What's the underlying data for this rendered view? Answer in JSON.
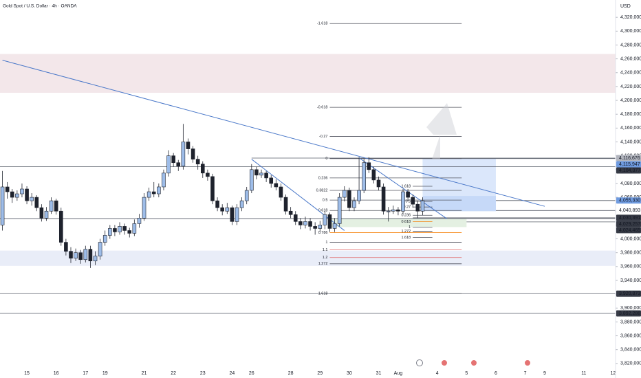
{
  "chart_data": {
    "type": "candlestick",
    "title": "Gold Spot / U.S. Dollar · 4h · OANDA",
    "currency": "USD",
    "categories": [
      null,
      null,
      null,
      null,
      null,
      "15",
      null,
      null,
      null,
      null,
      null,
      "16",
      null,
      null,
      null,
      null,
      null,
      "17",
      null,
      null,
      null,
      "19",
      null,
      null,
      null,
      null,
      null,
      null,
      null,
      "21",
      null,
      null,
      null,
      null,
      null,
      "22",
      null,
      null,
      null,
      null,
      null,
      "23",
      null,
      null,
      null,
      null,
      null,
      "24",
      null,
      null,
      null,
      "26",
      null,
      null,
      null,
      null,
      null,
      null,
      null,
      "28",
      null,
      null,
      null,
      null,
      null,
      "29",
      null,
      null,
      null,
      null,
      null,
      "30",
      null,
      null,
      null,
      null,
      null,
      "31",
      null,
      null,
      null,
      "Aug",
      null,
      null,
      null,
      null,
      null,
      null,
      null,
      "4",
      null,
      null,
      null,
      null,
      null,
      "5",
      null,
      null,
      null,
      null,
      null,
      "6",
      null,
      null,
      null,
      null,
      null,
      "7",
      null,
      null,
      null,
      "9",
      null,
      null,
      null,
      null,
      null,
      null,
      null,
      "11",
      null,
      null,
      null,
      null,
      null,
      "12"
    ],
    "open": [
      4020000,
      4075000,
      4068000,
      4060000,
      4065000,
      4072000,
      4055000,
      4060000,
      4045000,
      4030000,
      4040000,
      4055000,
      4040000,
      3995000,
      3982000,
      3972000,
      3980000,
      3970000,
      3985000,
      3968000,
      3975000,
      3995000,
      4005000,
      4015000,
      4010000,
      4018000,
      4012000,
      4008000,
      4022000,
      4030000,
      4060000,
      4068000,
      4065000,
      4075000,
      4095000,
      4120000,
      4110000,
      4105000,
      4140000,
      4130000,
      4115000,
      4108000,
      4095000,
      4090000,
      4055000,
      4045000,
      4040000,
      4045000,
      4025000,
      4045000,
      4055000,
      4070000,
      4100000,
      4092000,
      4095000,
      4088000,
      4080000,
      4075000,
      4060000,
      4040000,
      4035000,
      4025000,
      4020000,
      4025000,
      4018000,
      4015000,
      4020000,
      4035000,
      4015000,
      4022000,
      4060000,
      4070000,
      4045000,
      4055000,
      4070000,
      4110000,
      4100000,
      4085000,
      4075000,
      4040000,
      4040000,
      4042000,
      4040000,
      4068000,
      4060000,
      4050000,
      4040000,
      null,
      null,
      null,
      null,
      null,
      null,
      null,
      null,
      null,
      null,
      null,
      null,
      null,
      null,
      null,
      null,
      null,
      null,
      null,
      null,
      null,
      null,
      null,
      null,
      null,
      null,
      null,
      null,
      null,
      null,
      null,
      null,
      null,
      null,
      null,
      null,
      null,
      null,
      null
    ],
    "high": [
      4098000,
      4082000,
      4072000,
      4070000,
      4080000,
      4076000,
      4066000,
      4063000,
      4050000,
      4046000,
      4060000,
      4058000,
      4045000,
      4000000,
      3988000,
      3986000,
      3984000,
      3990000,
      3990000,
      3982000,
      4000000,
      4012000,
      4020000,
      4020000,
      4024000,
      4022000,
      4016000,
      4028000,
      4036000,
      4066000,
      4074000,
      4082000,
      4080000,
      4100000,
      4128000,
      4124000,
      4114000,
      4166000,
      4145000,
      4134000,
      4120000,
      4112000,
      4100000,
      4094000,
      4060000,
      4050000,
      4052000,
      4048000,
      4050000,
      4060000,
      4075000,
      4108000,
      4104000,
      4100000,
      4098000,
      4092000,
      4086000,
      4080000,
      4064000,
      4046000,
      4040000,
      4030000,
      4032000,
      4030000,
      4024000,
      4026000,
      4040000,
      4038000,
      4030000,
      4066000,
      4076000,
      4074000,
      4060000,
      4118000,
      4116000,
      4118000,
      4104000,
      4090000,
      4080000,
      4046000,
      4048000,
      4046000,
      4072000,
      4072000,
      4064000,
      4055000,
      4060000,
      null,
      null,
      null,
      null,
      null,
      null,
      null,
      null,
      null,
      null,
      null,
      null,
      null,
      null,
      null,
      null,
      null,
      null,
      null,
      null,
      null,
      null,
      null,
      null,
      null,
      null,
      null,
      null,
      null,
      null,
      null,
      null,
      null,
      null,
      null,
      null,
      null,
      null,
      null
    ],
    "low": [
      4012000,
      4058000,
      4052000,
      4055000,
      4060000,
      4050000,
      4048000,
      4040000,
      4025000,
      4026000,
      4036000,
      4035000,
      3990000,
      3976000,
      3965000,
      3968000,
      3964000,
      3966000,
      3958000,
      3962000,
      3970000,
      3990000,
      4000000,
      4004000,
      4006000,
      4006000,
      4002000,
      4004000,
      4016000,
      4026000,
      4055000,
      4060000,
      4060000,
      4070000,
      4090000,
      4104000,
      4098000,
      4100000,
      4122000,
      4110000,
      4100000,
      4088000,
      4084000,
      4050000,
      4040000,
      4034000,
      4036000,
      4020000,
      4020000,
      4040000,
      4050000,
      4066000,
      4086000,
      4088000,
      4082000,
      4074000,
      4070000,
      4055000,
      4035000,
      4030000,
      4020000,
      4014000,
      4015000,
      4012000,
      4006000,
      4010000,
      4014000,
      4010000,
      4010000,
      4018000,
      4054000,
      4040000,
      4040000,
      4050000,
      4066000,
      4095000,
      4080000,
      4070000,
      4035000,
      4025000,
      4036000,
      4034000,
      4036000,
      4055000,
      4045000,
      4030000,
      4034000,
      null,
      null,
      null,
      null,
      null,
      null,
      null,
      null,
      null,
      null,
      null,
      null,
      null,
      null,
      null,
      null,
      null,
      null,
      null,
      null,
      null,
      null,
      null,
      null,
      null,
      null,
      null,
      null,
      null,
      null,
      null,
      null,
      null,
      null,
      null,
      null,
      null,
      null,
      null
    ],
    "close": [
      4075000,
      4068000,
      4060000,
      4065000,
      4072000,
      4055000,
      4060000,
      4045000,
      4030000,
      4040000,
      4055000,
      4040000,
      3995000,
      3982000,
      3972000,
      3980000,
      3970000,
      3985000,
      3968000,
      3975000,
      3995000,
      4005000,
      4015000,
      4010000,
      4018000,
      4012000,
      4008000,
      4022000,
      4030000,
      4060000,
      4068000,
      4065000,
      4075000,
      4095000,
      4120000,
      4110000,
      4105000,
      4140000,
      4130000,
      4115000,
      4108000,
      4095000,
      4090000,
      4055000,
      4045000,
      4040000,
      4045000,
      4025000,
      4045000,
      4055000,
      4070000,
      4100000,
      4092000,
      4095000,
      4088000,
      4080000,
      4075000,
      4060000,
      4040000,
      4035000,
      4025000,
      4020000,
      4025000,
      4018000,
      4015000,
      4020000,
      4035000,
      4015000,
      4022000,
      4060000,
      4070000,
      4045000,
      4055000,
      4070000,
      4110000,
      4100000,
      4085000,
      4075000,
      4040000,
      4040000,
      4042000,
      4040000,
      4068000,
      4060000,
      4050000,
      4040000,
      4055000,
      null,
      null,
      null,
      null,
      null,
      null,
      null,
      null,
      null,
      null,
      null,
      null,
      null,
      null,
      null,
      null,
      null,
      null,
      null,
      null,
      null,
      null,
      null,
      null,
      null,
      null,
      null,
      null,
      null,
      null,
      null,
      null,
      null,
      null,
      null,
      null,
      null,
      null,
      null
    ],
    "up_color": "#9ebde9",
    "down_color": "#1e222d",
    "wick_color": "#1e222d",
    "ylim": [
      3799000,
      4345000
    ],
    "yticks": [
      {
        "value": 4320000,
        "label": "4,320,000"
      },
      {
        "value": 4300000,
        "label": "4,300,000"
      },
      {
        "value": 4280000,
        "label": "4,280,000"
      },
      {
        "value": 4260000,
        "label": "4,260,000"
      },
      {
        "value": 4240000,
        "label": "4,240,000"
      },
      {
        "value": 4220000,
        "label": "4,220,000"
      },
      {
        "value": 4200000,
        "label": "4,200,000"
      },
      {
        "value": 4180000,
        "label": "4,180,000"
      },
      {
        "value": 4160000,
        "label": "4,160,000"
      },
      {
        "value": 4140000,
        "label": "4,140,000"
      },
      {
        "value": 4120000,
        "label": "4,120,000"
      },
      {
        "value": 4100000,
        "label": "4,100,000"
      },
      {
        "value": 4080000,
        "label": "4,080,000"
      },
      {
        "value": 4060000,
        "label": "4,060,000"
      },
      {
        "value": 4040000,
        "label": "4,040,000"
      },
      {
        "value": 4020000,
        "label": "4,020,000"
      },
      {
        "value": 4000000,
        "label": "4,000,000"
      },
      {
        "value": 3980000,
        "label": "3,980,000"
      },
      {
        "value": 3960000,
        "label": "3,960,000"
      },
      {
        "value": 3940000,
        "label": "3,940,000"
      },
      {
        "value": 3920000,
        "label": "3,920,000"
      },
      {
        "value": 3900000,
        "label": "3,900,000"
      },
      {
        "value": 3880000,
        "label": "3,880,000"
      },
      {
        "value": 3860000,
        "label": "3,860,000"
      },
      {
        "value": 3840000,
        "label": "3,840,000"
      },
      {
        "value": 3820000,
        "label": "3,820,000"
      }
    ],
    "grid": false,
    "zones": [
      {
        "range": [
          4211000,
          4267000
        ],
        "color": "#f3e7ea"
      },
      {
        "range": [
          3961000,
          3983000
        ],
        "color": "#e9edf8"
      },
      {
        "range": [
          4040000,
          4116000
        ],
        "x": [
          86,
          101
        ],
        "color": "#dbe7fb"
      },
      {
        "range": [
          4040000,
          4062000
        ],
        "x": [
          86,
          101
        ],
        "color": "#c6d9f8"
      },
      {
        "range": [
          4017000,
          4029000
        ],
        "x": [
          67,
          95
        ],
        "color": "#e4f0e2"
      }
    ],
    "trendlines": [
      {
        "x": [
          0,
          111
        ],
        "y": [
          4258000,
          4047000
        ],
        "color": "#4a78c9"
      },
      {
        "x": [
          51,
          70
        ],
        "y": [
          4115000,
          4012000
        ],
        "color": "#4a78c9"
      },
      {
        "x": [
          73,
          91
        ],
        "y": [
          4117000,
          4029000
        ],
        "color": "#4a78c9"
      }
    ],
    "price_labels": [
      {
        "value": 4116676,
        "label": "4,116,676",
        "bg": "#b2b5be",
        "fg": "#131722",
        "from": 51
      },
      {
        "value": 4115947,
        "label": "4,115,947",
        "bg": "#6f9be0",
        "fg": "#ffffff",
        "from": 67
      },
      {
        "value": 4104377,
        "label": "4,104,377",
        "bg": "#363a45",
        "fg": "#ffffff",
        "from": 0
      },
      {
        "value": 4055330,
        "label": "4,055,330",
        "bg": "#6f9be0",
        "fg": "#ffffff",
        "from": 101
      },
      {
        "value": 4040893,
        "label": "4,040,893",
        "bg": "#ffffff",
        "fg": "#131722",
        "from": 101
      },
      {
        "value": 4030391,
        "label": "4,030,391",
        "bg": "#363a45",
        "fg": "#ffffff",
        "from": 84
      },
      {
        "value": 4029257,
        "label": "4,029,257",
        "bg": "#363a45",
        "fg": "#ffffff",
        "from": 0
      },
      {
        "value": 4024465,
        "label": "4,024,465",
        "bg": "#363a45",
        "fg": "#ffffff",
        "from": 95
      },
      {
        "value": 3920873,
        "label": "3,920,873",
        "bg": "#363a45",
        "fg": "#ffffff",
        "from": 0
      },
      {
        "value": 3892288,
        "label": "3,892,288",
        "bg": "#363a45",
        "fg": "#ffffff",
        "from": 0
      }
    ],
    "fibs": [
      {
        "x": [
          67,
          94
        ],
        "levels": [
          {
            "label": "-1.618",
            "price": 4311000,
            "color": "#50535e"
          },
          {
            "label": "-0.618",
            "price": 4190000,
            "color": "#50535e"
          },
          {
            "label": "-0.27",
            "price": 4148000,
            "color": "#50535e"
          },
          {
            "label": "0",
            "price": 4116000,
            "color": "#50535e"
          },
          {
            "label": "0.236",
            "price": 4088000,
            "color": "#50535e"
          },
          {
            "label": "0.3822",
            "price": 4070000,
            "color": "#50535e"
          },
          {
            "label": "0.5",
            "price": 4056000,
            "color": "#50535e"
          },
          {
            "label": "0.618",
            "price": 4041000,
            "color": "#50535e"
          },
          {
            "label": "0.786",
            "price": 4009000,
            "color": "#f57c00"
          },
          {
            "label": "1",
            "price": 3995000,
            "color": "#50535e"
          },
          {
            "label": "1.1",
            "price": 3984000,
            "color": "#e06666"
          },
          {
            "label": "1.2",
            "price": 3973000,
            "color": "#e06666"
          },
          {
            "label": "1.272",
            "price": 3964000,
            "color": "#50535e"
          },
          {
            "label": "1.618",
            "price": 3921000,
            "color": "#50535e"
          }
        ]
      },
      {
        "x": [
          84,
          88
        ],
        "levels": [
          {
            "label": "1.618",
            "price": 4076000,
            "color": "#50535e"
          },
          {
            "label": "0.5",
            "price": 4054000,
            "color": "#50535e"
          },
          {
            "label": "0.27",
            "price": 4046000,
            "color": "#50535e"
          },
          {
            "label": "0.236",
            "price": 4034000,
            "color": "#50535e"
          },
          {
            "label": "0.618",
            "price": 4025000,
            "color": "#f57c00"
          },
          {
            "label": "1",
            "price": 4017000,
            "color": "#50535e"
          },
          {
            "label": "1.272",
            "price": 4011000,
            "color": "#50535e"
          },
          {
            "label": "1.618",
            "price": 4002000,
            "color": "#50535e"
          }
        ]
      }
    ]
  }
}
